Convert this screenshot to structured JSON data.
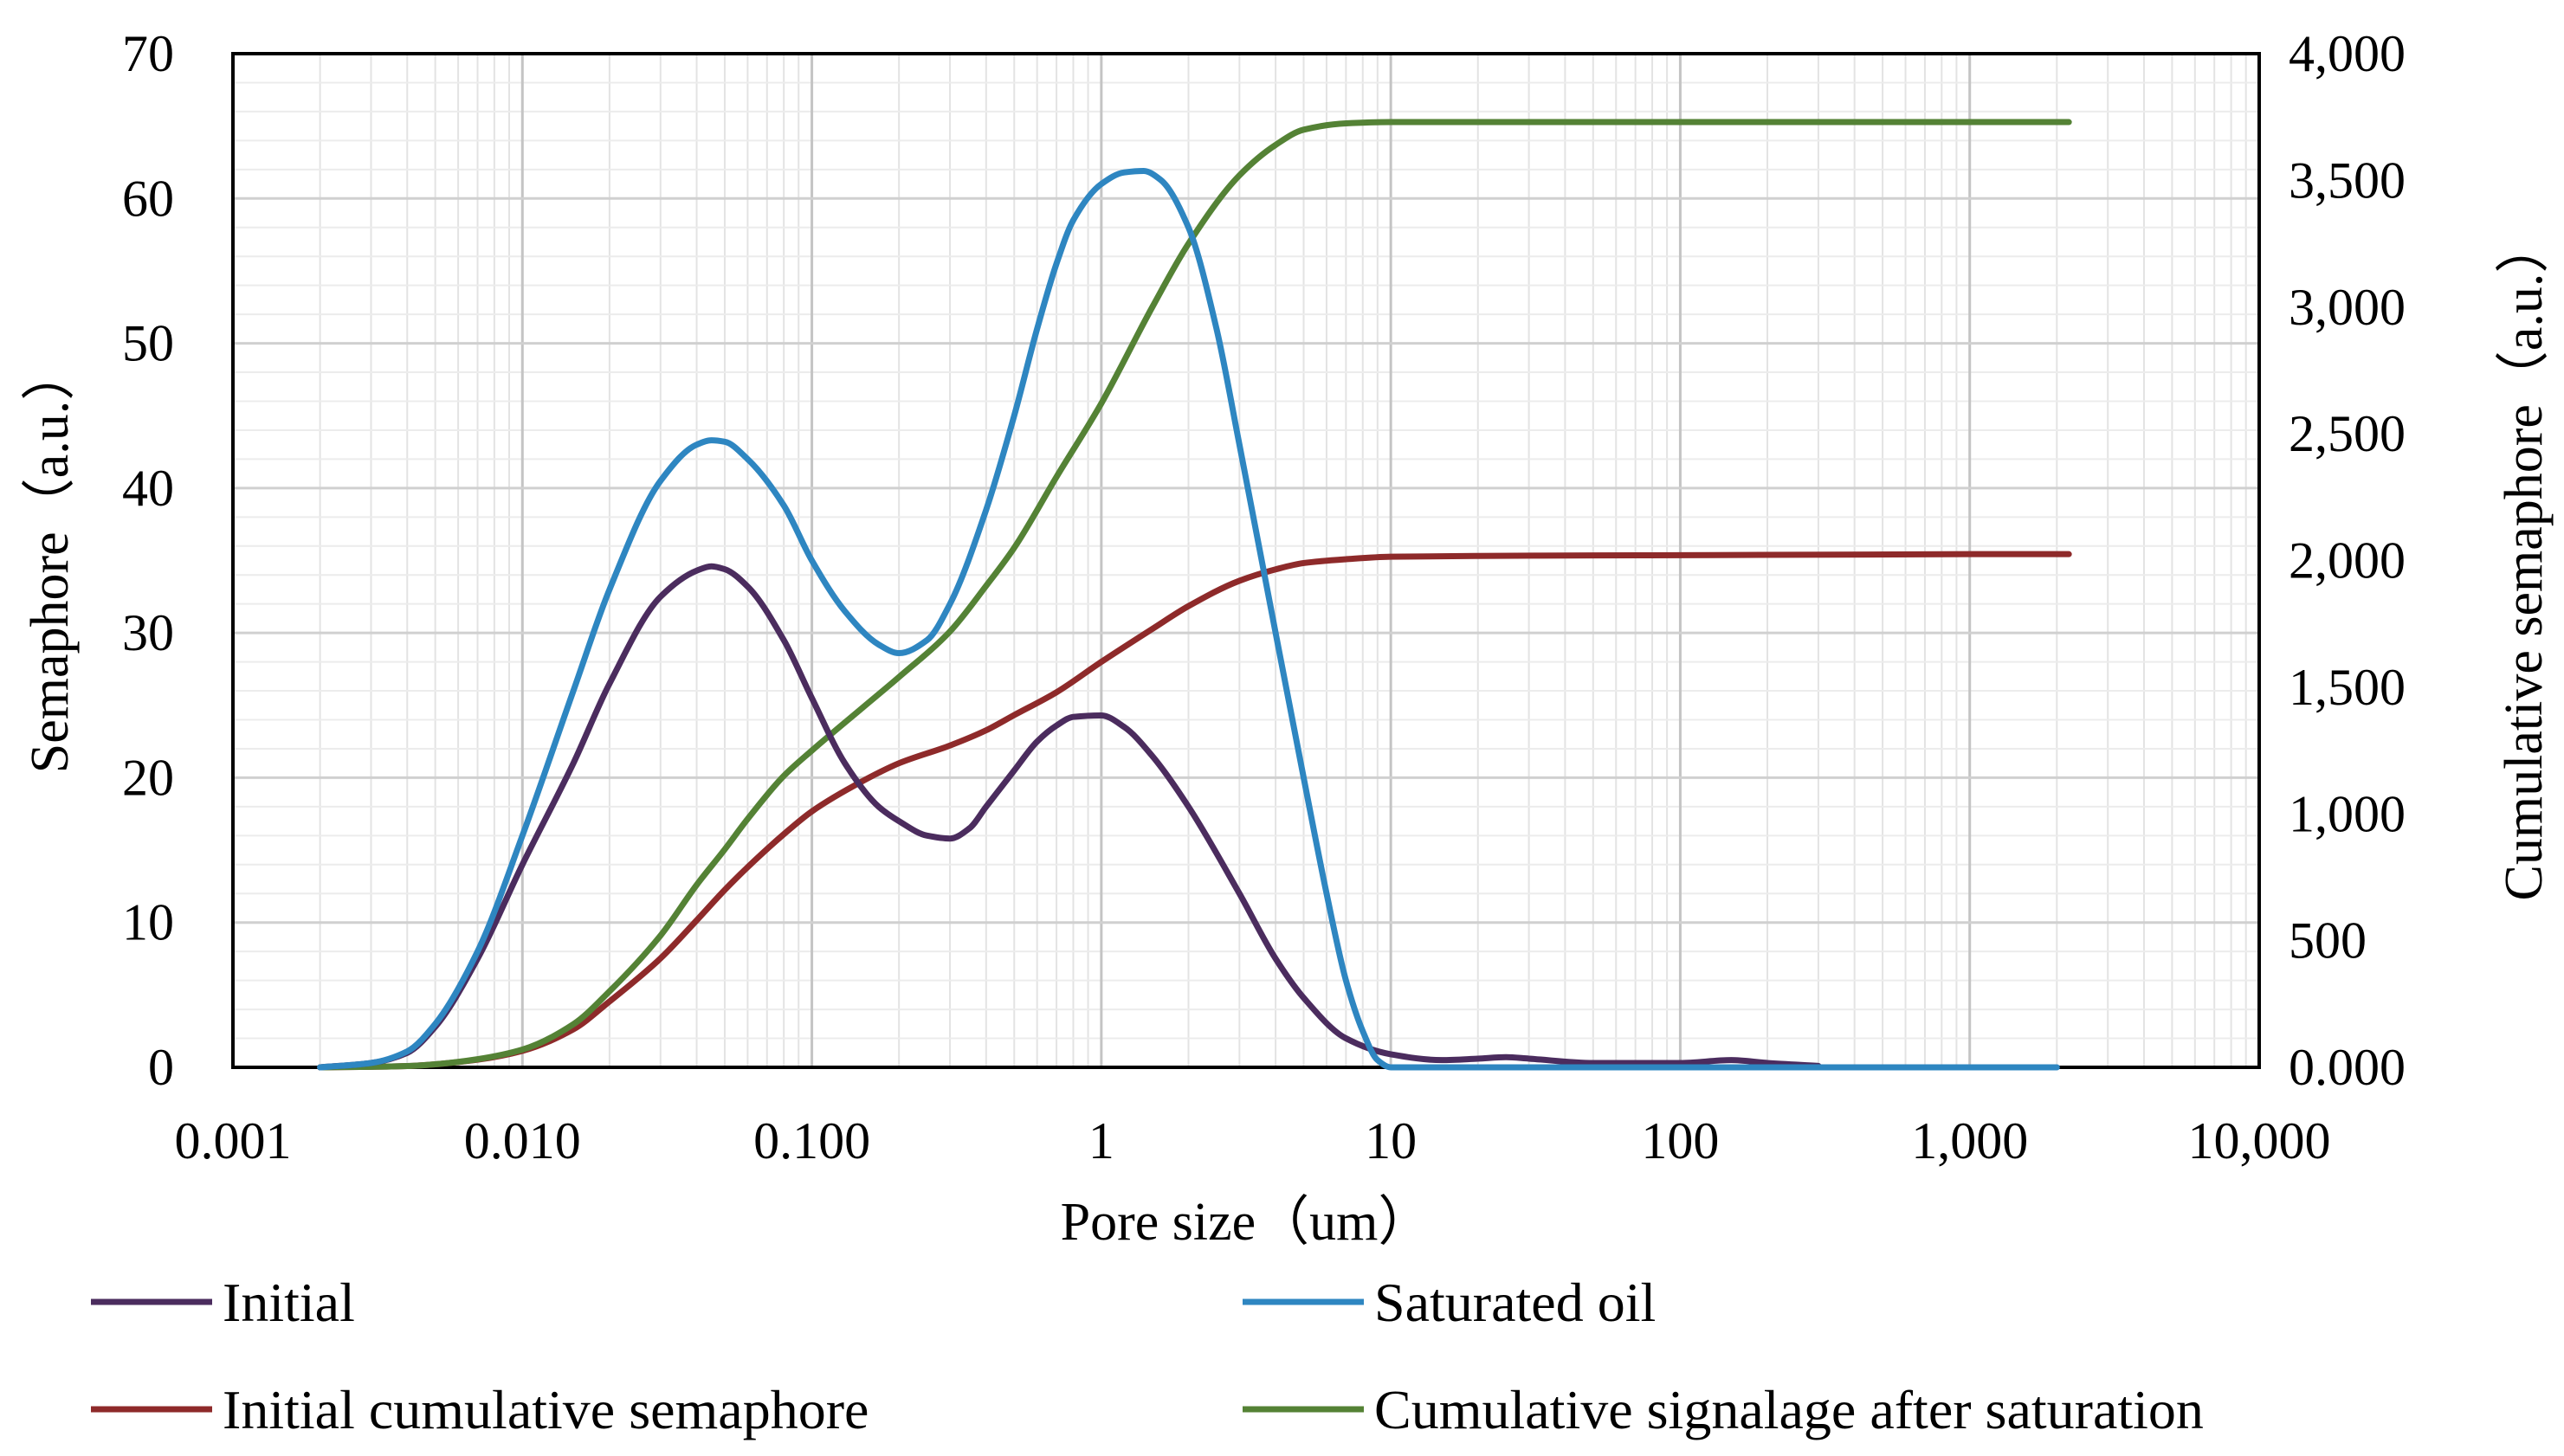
{
  "chart_data": {
    "type": "line",
    "title": "",
    "xlabel": "Pore size（um）",
    "ylabel": "Semaphore（a.u.）",
    "y2label": "Cumulative semaphore（a.u.）",
    "x_scale": "log",
    "xlim": [
      0.001,
      10000
    ],
    "ylim": [
      0,
      70
    ],
    "y2lim": [
      0,
      4000
    ],
    "x_ticks": [
      {
        "value": 0.001,
        "label": "0.001"
      },
      {
        "value": 0.01,
        "label": "0.010"
      },
      {
        "value": 0.1,
        "label": "0.100"
      },
      {
        "value": 1,
        "label": "1"
      },
      {
        "value": 10,
        "label": "10"
      },
      {
        "value": 100,
        "label": "100"
      },
      {
        "value": 1000,
        "label": "1,000"
      },
      {
        "value": 10000,
        "label": "10,000"
      }
    ],
    "y_ticks": [
      {
        "value": 0,
        "label": "0"
      },
      {
        "value": 10,
        "label": "10"
      },
      {
        "value": 20,
        "label": "20"
      },
      {
        "value": 30,
        "label": "30"
      },
      {
        "value": 40,
        "label": "40"
      },
      {
        "value": 50,
        "label": "50"
      },
      {
        "value": 60,
        "label": "60"
      },
      {
        "value": 70,
        "label": "70"
      }
    ],
    "y2_ticks": [
      {
        "value": 0,
        "label": "0.000"
      },
      {
        "value": 500,
        "label": "500"
      },
      {
        "value": 1000,
        "label": "1,000"
      },
      {
        "value": 1500,
        "label": "1,500"
      },
      {
        "value": 2000,
        "label": "2,000"
      },
      {
        "value": 2500,
        "label": "2,500"
      },
      {
        "value": 3000,
        "label": "3,000"
      },
      {
        "value": 3500,
        "label": "3,500"
      },
      {
        "value": 4000,
        "label": "4,000"
      }
    ],
    "grid": true,
    "legend_position": "bottom",
    "series": [
      {
        "name": "Initial",
        "axis": "left",
        "color": "#4b2c5e",
        "x": [
          0.002,
          0.003,
          0.004,
          0.005,
          0.007,
          0.01,
          0.015,
          0.02,
          0.03,
          0.04,
          0.045,
          0.05,
          0.06,
          0.08,
          0.1,
          0.13,
          0.17,
          0.2,
          0.25,
          0.3,
          0.35,
          0.4,
          0.5,
          0.6,
          0.7,
          0.8,
          1.0,
          1.2,
          1.5,
          2.0,
          3.0,
          4.0,
          5.0,
          7.0,
          10,
          15,
          20,
          25,
          30,
          50,
          100,
          150,
          200,
          300
        ],
        "y": [
          0,
          0.3,
          1.0,
          2.8,
          7.5,
          14,
          21,
          26.5,
          32.5,
          34.3,
          34.6,
          34.4,
          33.2,
          29.5,
          25.5,
          21,
          18,
          17,
          16,
          15.8,
          16.5,
          18,
          20.5,
          22.5,
          23.6,
          24.2,
          24.3,
          23.5,
          21.5,
          18,
          12,
          7.5,
          4.8,
          2,
          0.9,
          0.5,
          0.6,
          0.7,
          0.6,
          0.3,
          0.3,
          0.5,
          0.3,
          0.1
        ]
      },
      {
        "name": "Saturated oil",
        "axis": "left",
        "color": "#2e86c1",
        "x": [
          0.002,
          0.003,
          0.004,
          0.005,
          0.007,
          0.01,
          0.015,
          0.02,
          0.03,
          0.04,
          0.045,
          0.05,
          0.06,
          0.08,
          0.1,
          0.13,
          0.17,
          0.2,
          0.25,
          0.3,
          0.4,
          0.5,
          0.6,
          0.7,
          0.8,
          1.0,
          1.2,
          1.4,
          1.6,
          2.0,
          2.5,
          3.0,
          4.0,
          5.0,
          6.0,
          7.0,
          8.0,
          9.0,
          10,
          20,
          100,
          1000,
          2000
        ],
        "y": [
          0,
          0.3,
          1.1,
          3.0,
          8.0,
          16,
          26,
          33,
          40.5,
          43,
          43.3,
          43.2,
          42,
          38.8,
          35,
          31.5,
          29.2,
          28.6,
          29.5,
          32,
          38.5,
          45,
          51,
          55.5,
          58.5,
          61,
          61.8,
          61.9,
          61.3,
          58,
          51,
          43,
          30,
          20,
          12,
          6,
          2.5,
          0.5,
          0,
          0,
          0,
          0,
          0
        ]
      },
      {
        "name": "Initial cumulative semaphore",
        "axis": "right",
        "color": "#8e2a2a",
        "x": [
          0.002,
          0.003,
          0.004,
          0.005,
          0.007,
          0.01,
          0.015,
          0.02,
          0.03,
          0.04,
          0.05,
          0.06,
          0.08,
          0.1,
          0.15,
          0.2,
          0.3,
          0.4,
          0.5,
          0.7,
          1.0,
          1.5,
          2.0,
          3.0,
          4.0,
          5.0,
          7.0,
          10,
          20,
          50,
          100,
          1000,
          2200
        ],
        "y": [
          0,
          2,
          5,
          12,
          30,
          65,
          150,
          260,
          430,
          580,
          700,
          790,
          920,
          1010,
          1130,
          1200,
          1270,
          1330,
          1390,
          1480,
          1600,
          1730,
          1820,
          1920,
          1965,
          1990,
          2005,
          2015,
          2018,
          2020,
          2021,
          2025,
          2025
        ]
      },
      {
        "name": "Cumulative signalage after saturation",
        "axis": "right",
        "color": "#548235",
        "x": [
          0.002,
          0.003,
          0.004,
          0.005,
          0.007,
          0.01,
          0.015,
          0.02,
          0.03,
          0.04,
          0.05,
          0.06,
          0.08,
          0.1,
          0.15,
          0.2,
          0.3,
          0.4,
          0.5,
          0.7,
          1.0,
          1.5,
          2.0,
          3.0,
          4.0,
          5.0,
          7.0,
          10,
          20,
          100,
          1000,
          2200
        ],
        "y": [
          0,
          2,
          5,
          12,
          32,
          70,
          170,
          300,
          520,
          720,
          860,
          980,
          1150,
          1250,
          1420,
          1540,
          1720,
          1900,
          2050,
          2330,
          2620,
          3000,
          3250,
          3520,
          3640,
          3700,
          3725,
          3730,
          3730,
          3730,
          3730,
          3730
        ]
      }
    ]
  }
}
